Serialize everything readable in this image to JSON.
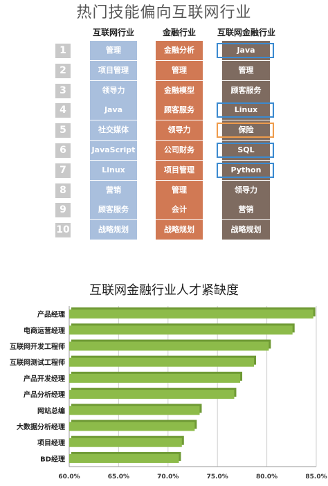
{
  "table": {
    "title": "热门技能偏向互联网行业",
    "headers": [
      "互联网行业",
      "金融行业",
      "互联网金融行业"
    ],
    "rows": [
      {
        "num": "1",
        "internet": "管理",
        "finance": "金融分析",
        "ifinance": "Java",
        "highlight": "blue"
      },
      {
        "num": "2",
        "internet": "项目管理",
        "finance": "管理",
        "ifinance": "管理",
        "highlight": ""
      },
      {
        "num": "3",
        "internet": "领导力",
        "finance": "金融模型",
        "ifinance": "顾客服务",
        "highlight": ""
      },
      {
        "num": "4",
        "internet": "Java",
        "finance": "顾客服务",
        "ifinance": "Linux",
        "highlight": "blue"
      },
      {
        "num": "5",
        "internet": "社交媒体",
        "finance": "领导力",
        "ifinance": "保险",
        "highlight": "orange"
      },
      {
        "num": "6",
        "internet": "JavaScript",
        "finance": "公司财务",
        "ifinance": "SQL",
        "highlight": "blue"
      },
      {
        "num": "7",
        "internet": "Linux",
        "finance": "项目管理",
        "ifinance": "Python",
        "highlight": "blue"
      },
      {
        "num": "8",
        "internet": "营销",
        "finance": "管理",
        "ifinance": "领导力",
        "highlight": ""
      },
      {
        "num": "9",
        "internet": "顾客服务",
        "finance": "会计",
        "ifinance": "营销",
        "highlight": ""
      },
      {
        "num": "10",
        "internet": "战略规划",
        "finance": "战略规划",
        "ifinance": "战略规划",
        "highlight": ""
      }
    ],
    "colors": {
      "internet": "#a9bfdd",
      "finance": "#d17954",
      "ifinance": "#7e6b60",
      "number": "#c9c9c9",
      "box_blue": "#3b8ad0",
      "box_orange": "#ef9b4a"
    }
  },
  "chart_data": {
    "type": "bar",
    "orientation": "horizontal",
    "title": "互联网金融行业人才紧缺度",
    "categories": [
      "产品经理",
      "电商运营经理",
      "互联网开发工程师",
      "互联网测试工程师",
      "产品开发经理",
      "产品分析经理",
      "网站总编",
      "大数据分析经理",
      "项目经理",
      "BD经理"
    ],
    "values": [
      84.7,
      82.6,
      80.2,
      78.7,
      77.3,
      76.7,
      73.2,
      72.7,
      71.4,
      71.1
    ],
    "xlim": [
      60,
      85
    ],
    "xticks": [
      "60.0%",
      "65.0%",
      "70.0%",
      "75.0%",
      "80.0%",
      "85.0%"
    ],
    "bar_color": "#8dbb4a",
    "grid": true
  }
}
